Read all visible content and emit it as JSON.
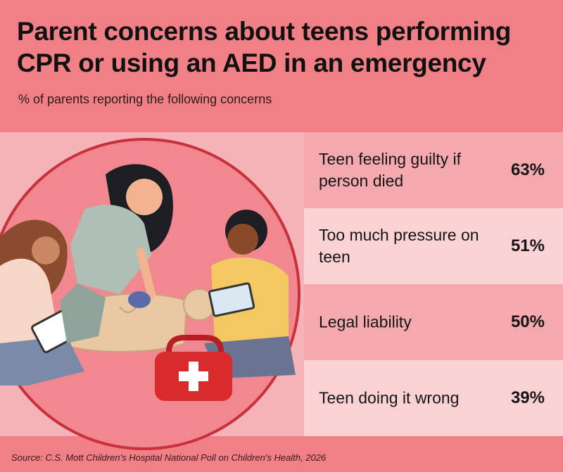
{
  "title": "Parent concerns about teens performing CPR or using an AED in an emergency",
  "subtitle": "% of parents reporting the following concerns",
  "source": "Source: C.S. Mott Children's Hospital National Poll on Children's Health, 2026",
  "colors": {
    "background": "#f07f86",
    "row_dark": "#f4a9ae",
    "row_light": "#fad2d4",
    "circle_outline": "#c8303c",
    "first_aid_kit": "#d92b2b"
  },
  "chart_data": {
    "type": "table",
    "categories": [
      "Teen feeling guilty if person died",
      "Too much pressure on teen",
      "Legal liability",
      "Teen doing it wrong"
    ],
    "values": [
      63,
      51,
      50,
      39
    ],
    "value_labels": [
      "63%",
      "51%",
      "50%",
      "39%"
    ]
  }
}
